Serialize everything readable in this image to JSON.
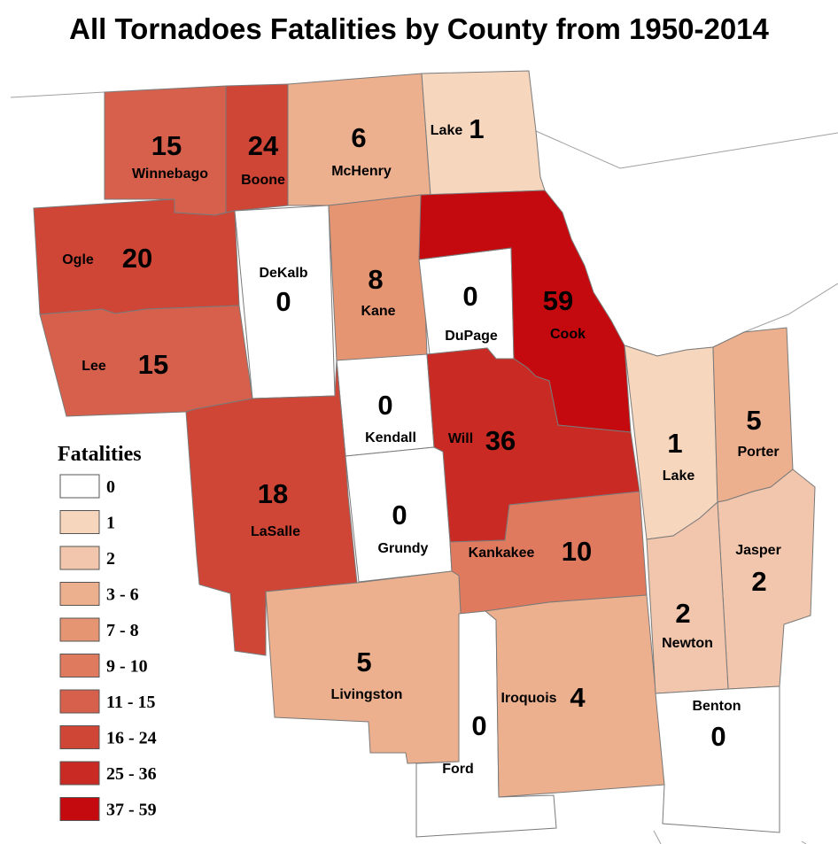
{
  "title": "All Tornadoes Fatalities by County from 1950-2014",
  "legend": {
    "title": "Fatalities",
    "items": [
      {
        "label": "0",
        "color": "#ffffff"
      },
      {
        "label": "1",
        "color": "#f6d6bd"
      },
      {
        "label": "2",
        "color": "#f2c6ac"
      },
      {
        "label": "3 - 6",
        "color": "#edb08f"
      },
      {
        "label": "7 - 8",
        "color": "#e69573"
      },
      {
        "label": "9 - 10",
        "color": "#df7a5e"
      },
      {
        "label": "11 - 15",
        "color": "#d6604c"
      },
      {
        "label": "16 - 24",
        "color": "#cf4536"
      },
      {
        "label": "25 - 36",
        "color": "#c92a24"
      },
      {
        "label": "37 - 59",
        "color": "#c40a0e"
      }
    ]
  },
  "counties": [
    {
      "key": "winnebago",
      "name": "Winnebago",
      "value": "15",
      "color": "#d6604c"
    },
    {
      "key": "boone",
      "name": "Boone",
      "value": "24",
      "color": "#cf4536"
    },
    {
      "key": "mchenry",
      "name": "McHenry",
      "value": "6",
      "color": "#edb08f"
    },
    {
      "key": "lake_il",
      "name": "Lake",
      "value": "1",
      "color": "#f6d6bd"
    },
    {
      "key": "ogle",
      "name": "Ogle",
      "value": "20",
      "color": "#cf4536"
    },
    {
      "key": "dekalb",
      "name": "DeKalb",
      "value": "0",
      "color": "#ffffff"
    },
    {
      "key": "kane",
      "name": "Kane",
      "value": "8",
      "color": "#e69573"
    },
    {
      "key": "dupage",
      "name": "DuPage",
      "value": "0",
      "color": "#ffffff"
    },
    {
      "key": "cook",
      "name": "Cook",
      "value": "59",
      "color": "#c40a0e"
    },
    {
      "key": "lee",
      "name": "Lee",
      "value": "15",
      "color": "#d6604c"
    },
    {
      "key": "kendall",
      "name": "Kendall",
      "value": "0",
      "color": "#ffffff"
    },
    {
      "key": "will",
      "name": "Will",
      "value": "36",
      "color": "#c92a24"
    },
    {
      "key": "lasalle",
      "name": "LaSalle",
      "value": "18",
      "color": "#cf4536"
    },
    {
      "key": "grundy",
      "name": "Grundy",
      "value": "0",
      "color": "#ffffff"
    },
    {
      "key": "kankakee",
      "name": "Kankakee",
      "value": "10",
      "color": "#df7a5e"
    },
    {
      "key": "livingston",
      "name": "Livingston",
      "value": "5",
      "color": "#edb08f"
    },
    {
      "key": "ford",
      "name": "Ford",
      "value": "0",
      "color": "#ffffff"
    },
    {
      "key": "iroquois",
      "name": "Iroquois",
      "value": "4",
      "color": "#edb08f"
    },
    {
      "key": "lake_in",
      "name": "Lake",
      "value": "1",
      "color": "#f6d6bd"
    },
    {
      "key": "porter",
      "name": "Porter",
      "value": "5",
      "color": "#edb08f"
    },
    {
      "key": "jasper",
      "name": "Jasper",
      "value": "2",
      "color": "#f2c6ac"
    },
    {
      "key": "newton",
      "name": "Newton",
      "value": "2",
      "color": "#f2c6ac"
    },
    {
      "key": "benton",
      "name": "Benton",
      "value": "0",
      "color": "#ffffff"
    }
  ]
}
